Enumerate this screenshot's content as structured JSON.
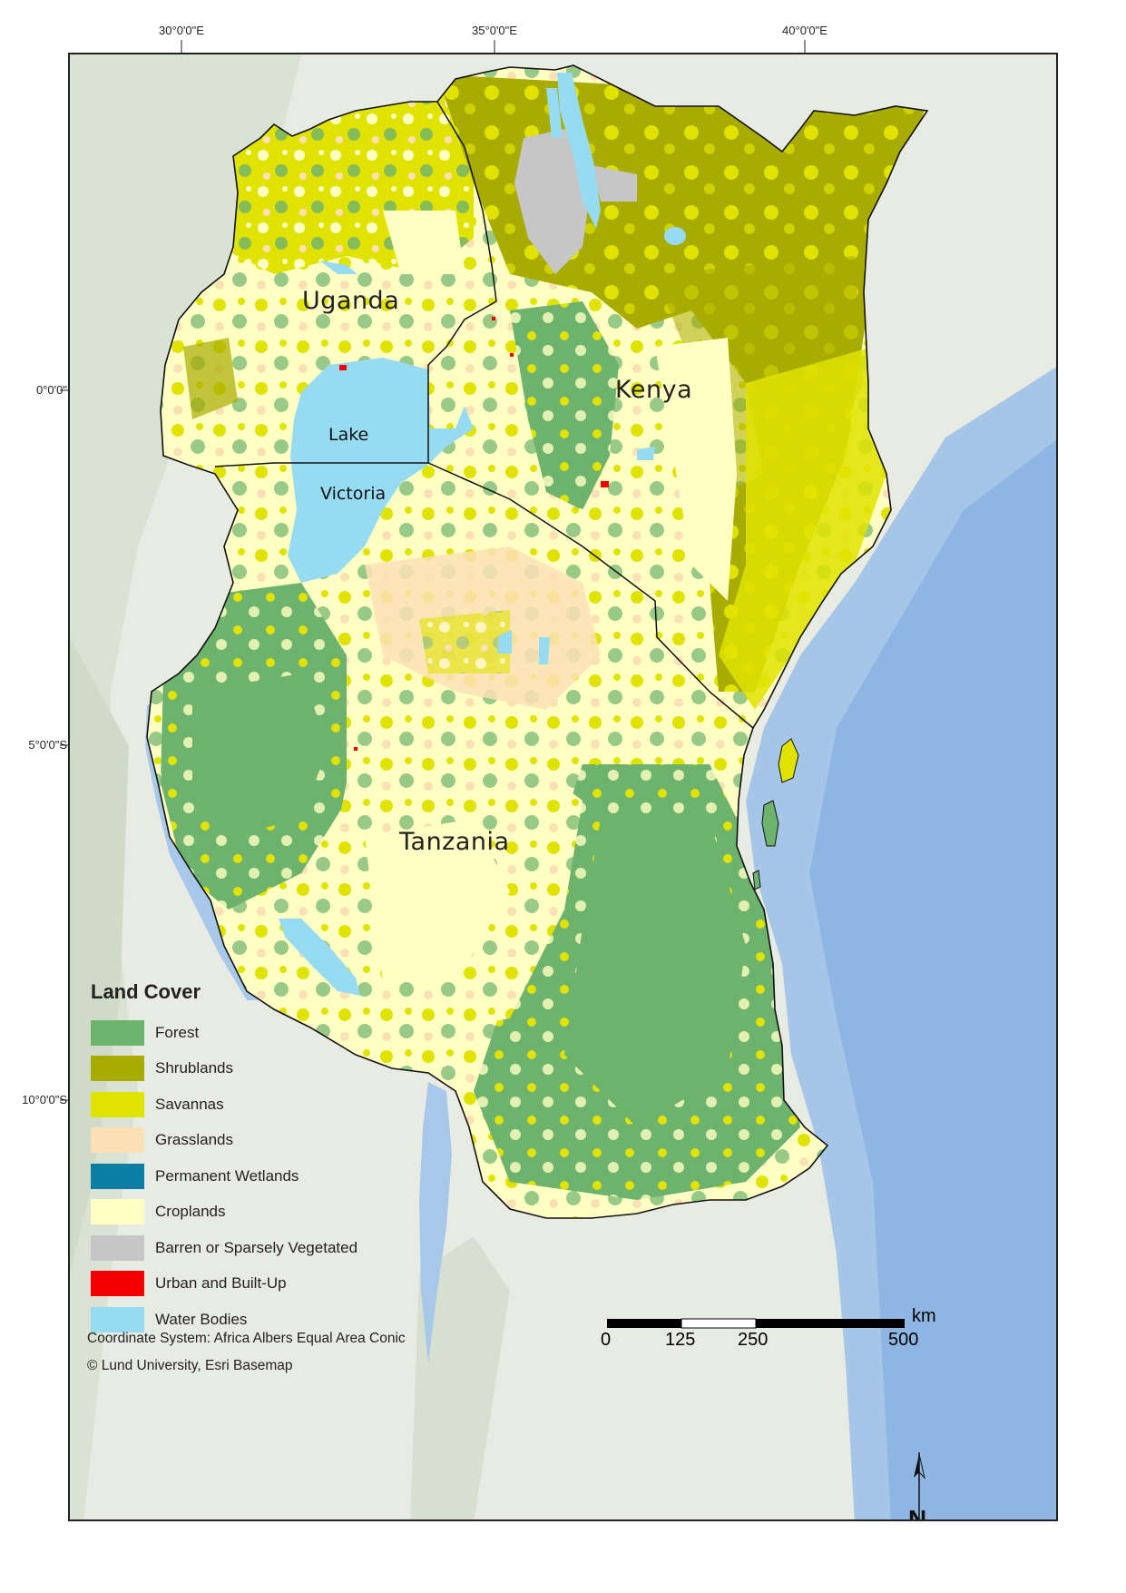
{
  "graticule": {
    "top": [
      "30°0'0\"E",
      "35°0'0\"E",
      "40°0'0\"E"
    ],
    "left": [
      "0°0'0\"",
      "5°0'0\"S",
      "10°0'0\"S"
    ]
  },
  "labels": {
    "uganda": "Uganda",
    "kenya": "Kenya",
    "tanzania": "Tanzania",
    "lake_line1": "Lake",
    "lake_line2": "Victoria"
  },
  "legend": {
    "title": "Land Cover",
    "items": [
      {
        "label": "Forest",
        "color": "#6db36d"
      },
      {
        "label": "Shrublands",
        "color": "#a8ab00"
      },
      {
        "label": "Savannas",
        "color": "#e0e300"
      },
      {
        "label": "Grasslands",
        "color": "#fbe0b6"
      },
      {
        "label": "Permanent Wetlands",
        "color": "#0b7fa3"
      },
      {
        "label": "Croplands",
        "color": "#ffffc3"
      },
      {
        "label": "Barren or Sparsely Vegetated",
        "color": "#c6c6c6"
      },
      {
        "label": "Urban and Built-Up",
        "color": "#f40000"
      },
      {
        "label": "Water Bodies",
        "color": "#97dbf2"
      }
    ]
  },
  "footnotes": {
    "crs": "Coordinate System: Africa Albers Equal Area Conic",
    "credit": "© Lund University, Esri Basemap"
  },
  "scale": {
    "unit": "km",
    "ticks": [
      "0",
      "125",
      "250",
      "500"
    ]
  },
  "north": {
    "letter": "N"
  }
}
